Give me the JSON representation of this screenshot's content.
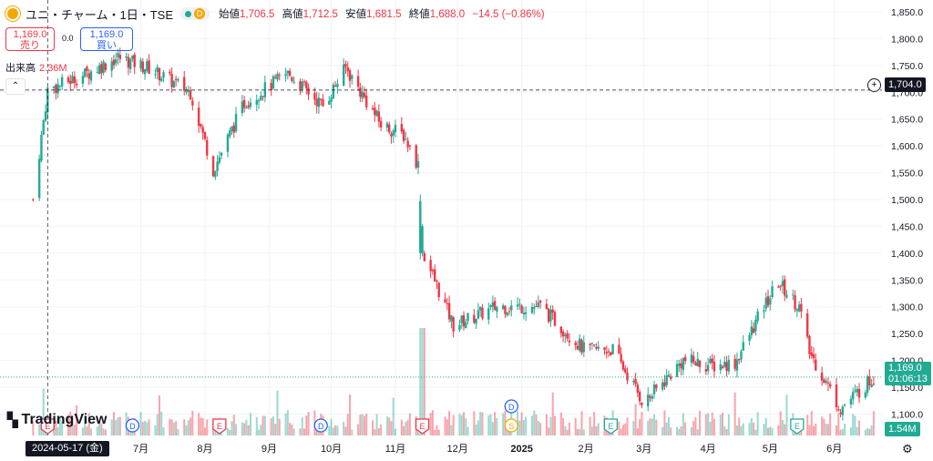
{
  "header": {
    "title": "ユニ・チャーム・1日・TSE",
    "badge": "D",
    "ohlc": [
      {
        "label": "始値",
        "value": "1,706.5"
      },
      {
        "label": "高値",
        "value": "1,712.5"
      },
      {
        "label": "安値",
        "value": "1,681.5"
      },
      {
        "label": "終値",
        "value": "1,688.0"
      }
    ],
    "change": "−14.5 (−0.86%)"
  },
  "trade": {
    "sell_price": "1,169.0",
    "sell_label": "売り",
    "spread": "0.0",
    "buy_price": "1,169.0",
    "buy_label": "買い"
  },
  "volume": {
    "label": "出来高",
    "value": "2.36M",
    "last_value": "1.54M"
  },
  "crosshair": {
    "date": "2024-05-17 (金)",
    "price": "1,704.0"
  },
  "last_price": {
    "price": "1,169.0",
    "countdown": "01:06:13"
  },
  "branding": {
    "name": "TradingView"
  },
  "colors": {
    "up": "#22ab94",
    "down": "#f23645",
    "crosshair": "#131722",
    "grid": "#f0f3fa"
  },
  "icons": {
    "symbol_logo": "company-logo-icon",
    "settings": "gear-icon",
    "add": "plus-circle-icon"
  },
  "chart_data": {
    "type": "candlestick",
    "y_axis": {
      "ticks": [
        1100,
        1150,
        1200,
        1250,
        1300,
        1350,
        1400,
        1450,
        1500,
        1550,
        1600,
        1650,
        1700,
        1750,
        1800,
        1850
      ],
      "ylim": [
        1060,
        1872
      ]
    },
    "x_axis": {
      "ticks": [
        "7月",
        "8月",
        "9月",
        "10月",
        "11月",
        "12月",
        "2025",
        "2月",
        "3月",
        "4月",
        "5月",
        "6月"
      ]
    },
    "anchors": [
      {
        "x": "2024-05-10",
        "y": 1500
      },
      {
        "x": "2024-05-17",
        "y": 1704
      },
      {
        "x": "2024-06-05",
        "y": 1735
      },
      {
        "x": "2024-06-20",
        "y": 1765
      },
      {
        "x": "2024-07-05",
        "y": 1745
      },
      {
        "x": "2024-07-25",
        "y": 1700
      },
      {
        "x": "2024-08-05",
        "y": 1555
      },
      {
        "x": "2024-08-20",
        "y": 1680
      },
      {
        "x": "2024-09-10",
        "y": 1735
      },
      {
        "x": "2024-09-27",
        "y": 1675
      },
      {
        "x": "2024-10-08",
        "y": 1745
      },
      {
        "x": "2024-10-25",
        "y": 1640
      },
      {
        "x": "2024-11-05",
        "y": 1620
      },
      {
        "x": "2024-11-12",
        "y": 1565
      },
      {
        "x": "2024-11-15",
        "y": 1395
      },
      {
        "x": "2024-11-29",
        "y": 1265
      },
      {
        "x": "2024-12-20",
        "y": 1300
      },
      {
        "x": "2025-01-10",
        "y": 1300
      },
      {
        "x": "2025-01-31",
        "y": 1220
      },
      {
        "x": "2025-02-14",
        "y": 1220
      },
      {
        "x": "2025-03-01",
        "y": 1120
      },
      {
        "x": "2025-03-20",
        "y": 1200
      },
      {
        "x": "2025-04-03",
        "y": 1190
      },
      {
        "x": "2025-04-14",
        "y": 1195
      },
      {
        "x": "2025-04-28",
        "y": 1300
      },
      {
        "x": "2025-05-05",
        "y": 1345
      },
      {
        "x": "2025-05-15",
        "y": 1300
      },
      {
        "x": "2025-05-20",
        "y": 1215
      },
      {
        "x": "2025-06-04",
        "y": 1110
      },
      {
        "x": "2025-06-20",
        "y": 1169
      }
    ],
    "markers": [
      {
        "label": "E",
        "x": "2024-05-17",
        "color": "#f23645"
      },
      {
        "label": "D",
        "x": "2024-06-27",
        "color": "#2962ff"
      },
      {
        "label": "E",
        "x": "2024-08-08",
        "color": "#f23645"
      },
      {
        "label": "D",
        "x": "2024-09-26",
        "color": "#2962ff"
      },
      {
        "label": "E",
        "x": "2024-11-14",
        "color": "#f23645"
      },
      {
        "label": "D",
        "x": "2024-12-27",
        "color": "#2962ff"
      },
      {
        "label": "S",
        "x": "2024-12-27",
        "color": "#f7a600"
      },
      {
        "label": "E",
        "x": "2025-02-13",
        "color": "#22ab94"
      },
      {
        "label": "E",
        "x": "2025-05-14",
        "color": "#22ab94"
      }
    ]
  }
}
